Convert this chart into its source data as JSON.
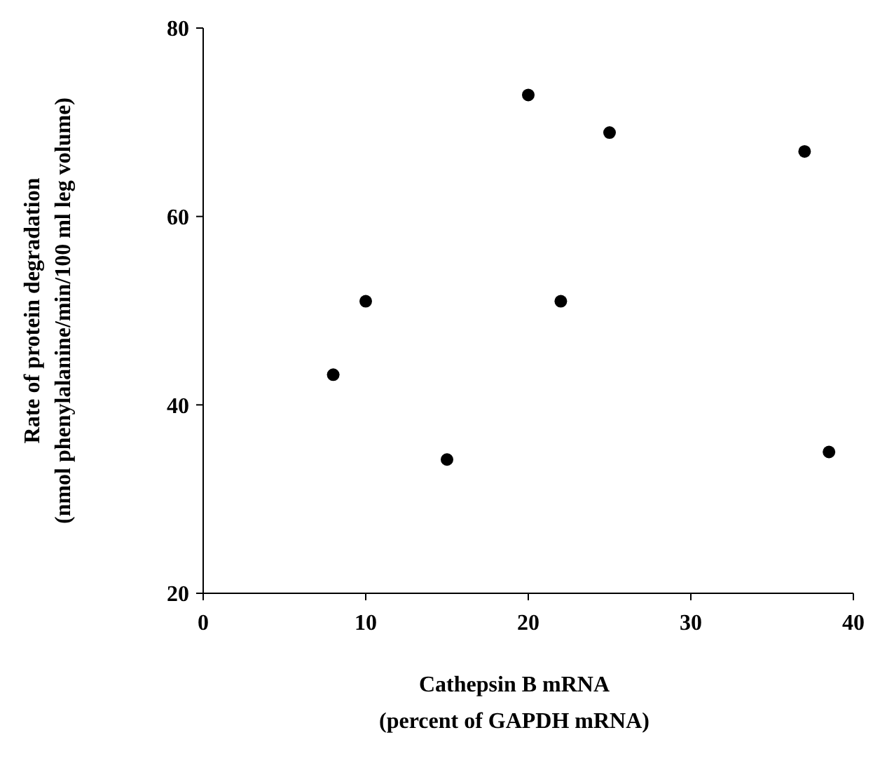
{
  "chart_data": {
    "type": "scatter",
    "xlabel": "Cathepsin B mRNA\n(percent of GAPDH mRNA)",
    "ylabel": "Rate of protein degradation\n(nmol phenylalanine/min/100 ml leg volume)",
    "x": [
      8,
      10,
      15,
      20,
      22,
      25,
      37,
      38.5
    ],
    "series": [
      {
        "color": "#000000",
        "values": [
          43.2,
          51,
          34.2,
          72.9,
          51,
          68.9,
          66.9,
          35
        ]
      }
    ],
    "xlim": [
      0,
      40
    ],
    "xticks": [
      0,
      10,
      20,
      30,
      40
    ],
    "ylim": [
      20,
      80
    ],
    "yticks": [
      20,
      40,
      60,
      80
    ],
    "marker": "circle"
  }
}
